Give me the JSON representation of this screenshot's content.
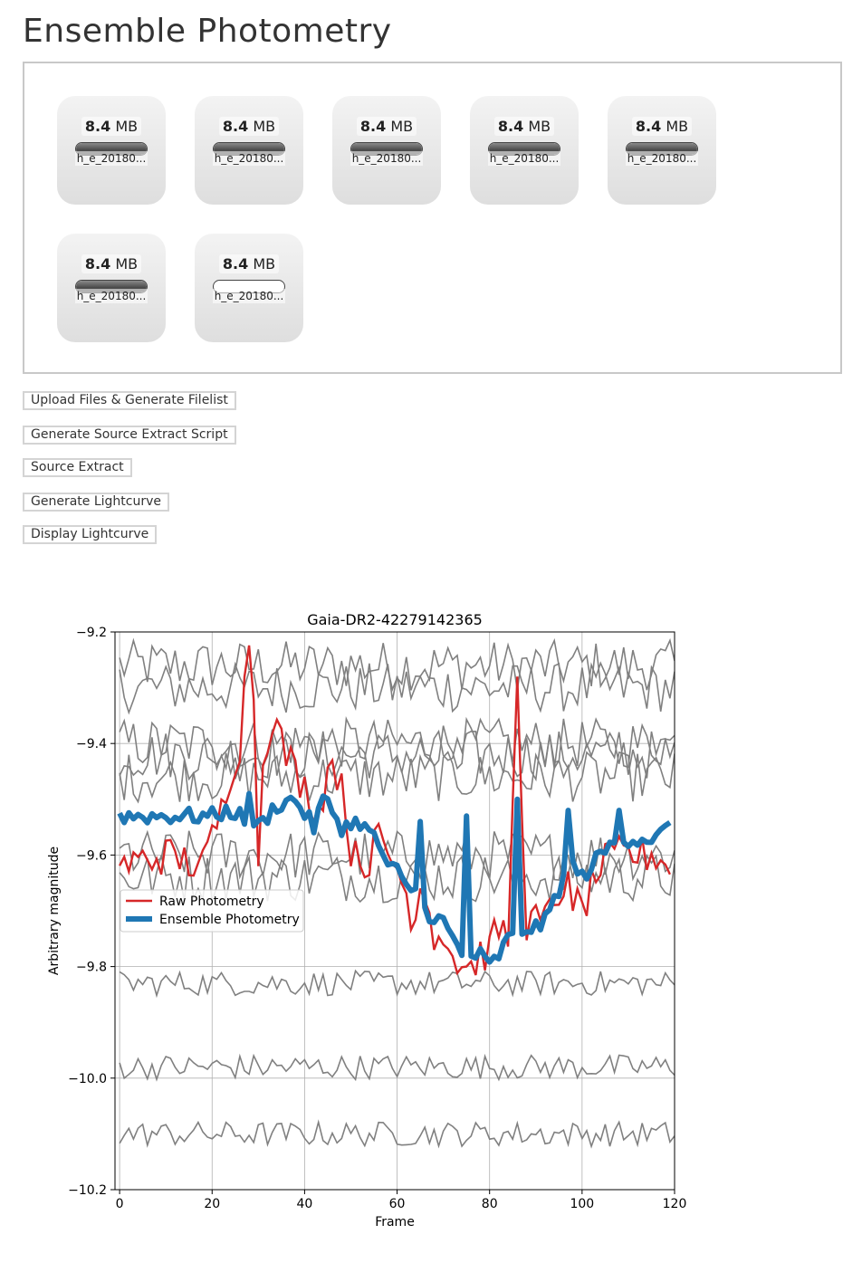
{
  "page": {
    "title": "Ensemble Photometry"
  },
  "files": [
    {
      "size_value": "8.4",
      "size_unit": "MB",
      "name": "h_e_20180...",
      "progress": 1.0
    },
    {
      "size_value": "8.4",
      "size_unit": "MB",
      "name": "h_e_20180...",
      "progress": 1.0
    },
    {
      "size_value": "8.4",
      "size_unit": "MB",
      "name": "h_e_20180...",
      "progress": 1.0
    },
    {
      "size_value": "8.4",
      "size_unit": "MB",
      "name": "h_e_20180...",
      "progress": 1.0
    },
    {
      "size_value": "8.4",
      "size_unit": "MB",
      "name": "h_e_20180...",
      "progress": 1.0
    },
    {
      "size_value": "8.4",
      "size_unit": "MB",
      "name": "h_e_20180...",
      "progress": 1.0
    },
    {
      "size_value": "8.4",
      "size_unit": "MB",
      "name": "h_e_20180...",
      "progress": 0.0
    }
  ],
  "buttons": {
    "upload": "Upload Files & Generate Filelist",
    "gen_script": "Generate Source Extract Script",
    "source_extract": "Source Extract",
    "gen_lightcurve": "Generate Lightcurve",
    "display_lightcurve": "Display Lightcurve"
  },
  "chart_data": {
    "type": "line",
    "title": "Gaia-DR2-42279142365",
    "xlabel": "Frame",
    "ylabel": "Arbitrary magnitude",
    "xlim": [
      -1,
      120
    ],
    "ylim": [
      -10.2,
      -9.2
    ],
    "yaxis_inverted": true,
    "xticks": [
      0,
      20,
      40,
      60,
      80,
      100,
      120
    ],
    "yticks": [
      -9.2,
      -9.4,
      -9.6,
      -9.8,
      -10.0,
      -10.2
    ],
    "ytick_labels": [
      "−9.2",
      "−9.4",
      "−9.6",
      "−9.8",
      "−10.0",
      "−10.2"
    ],
    "grid": true,
    "legend": {
      "placement": "center-left",
      "entries": [
        {
          "label": "Raw Photometry",
          "color": "#d62728"
        },
        {
          "label": "Ensemble Photometry",
          "color": "#1f77b4"
        }
      ]
    },
    "comparison_color": "#808080",
    "comparison_levels": [
      -9.26,
      -9.3,
      -9.4,
      -9.42,
      -9.46,
      -9.6,
      -9.64,
      -9.83,
      -9.98,
      -10.1
    ],
    "raw_profile": [
      [
        0,
        -9.62
      ],
      [
        10,
        -9.6
      ],
      [
        18,
        -9.62
      ],
      [
        22,
        -9.52
      ],
      [
        24,
        -9.45
      ],
      [
        26,
        -9.4
      ],
      [
        28,
        -9.2
      ],
      [
        30,
        -9.45
      ],
      [
        33,
        -9.35
      ],
      [
        36,
        -9.42
      ],
      [
        40,
        -9.48
      ],
      [
        43,
        -9.52
      ],
      [
        46,
        -9.42
      ],
      [
        50,
        -9.55
      ],
      [
        53,
        -9.62
      ],
      [
        56,
        -9.57
      ],
      [
        58,
        -9.6
      ],
      [
        60,
        -9.62
      ],
      [
        63,
        -9.7
      ],
      [
        66,
        -9.68
      ],
      [
        69,
        -9.72
      ],
      [
        72,
        -9.78
      ],
      [
        74,
        -9.8
      ],
      [
        76,
        -9.8
      ],
      [
        78,
        -9.78
      ],
      [
        80,
        -9.77
      ],
      [
        82,
        -9.73
      ],
      [
        84,
        -9.75
      ],
      [
        86,
        -9.3
      ],
      [
        88,
        -9.72
      ],
      [
        92,
        -9.72
      ],
      [
        96,
        -9.65
      ],
      [
        98,
        -9.67
      ],
      [
        100,
        -9.7
      ],
      [
        104,
        -9.62
      ],
      [
        108,
        -9.6
      ],
      [
        112,
        -9.6
      ],
      [
        116,
        -9.6
      ],
      [
        119,
        -9.62
      ]
    ],
    "ensemble_profile": [
      [
        0,
        -9.53
      ],
      [
        10,
        -9.53
      ],
      [
        20,
        -9.53
      ],
      [
        24,
        -9.52
      ],
      [
        26,
        -9.53
      ],
      [
        30,
        -9.55
      ],
      [
        34,
        -9.51
      ],
      [
        38,
        -9.5
      ],
      [
        42,
        -9.55
      ],
      [
        44,
        -9.5
      ],
      [
        46,
        -9.52
      ],
      [
        48,
        -9.55
      ],
      [
        52,
        -9.54
      ],
      [
        56,
        -9.58
      ],
      [
        58,
        -9.62
      ],
      [
        60,
        -9.63
      ],
      [
        62,
        -9.66
      ],
      [
        64,
        -9.66
      ],
      [
        66,
        -9.7
      ],
      [
        68,
        -9.71
      ],
      [
        70,
        -9.72
      ],
      [
        72,
        -9.75
      ],
      [
        74,
        -9.78
      ],
      [
        76,
        -9.78
      ],
      [
        78,
        -9.78
      ],
      [
        80,
        -9.8
      ],
      [
        82,
        -9.78
      ],
      [
        84,
        -9.75
      ],
      [
        86,
        -9.75
      ],
      [
        88,
        -9.73
      ],
      [
        90,
        -9.73
      ],
      [
        92,
        -9.72
      ],
      [
        94,
        -9.68
      ],
      [
        96,
        -9.64
      ],
      [
        98,
        -9.62
      ],
      [
        100,
        -9.64
      ],
      [
        104,
        -9.6
      ],
      [
        108,
        -9.57
      ],
      [
        112,
        -9.57
      ],
      [
        116,
        -9.57
      ],
      [
        119,
        -9.55
      ]
    ],
    "raw_spikes": [
      [
        30,
        -9.62
      ],
      [
        50,
        -9.62
      ],
      [
        53,
        -9.64
      ],
      [
        65,
        -9.66
      ],
      [
        68,
        -9.77
      ],
      [
        75,
        -9.8
      ],
      [
        86,
        -9.28
      ],
      [
        98,
        -9.7
      ]
    ],
    "ensemble_spikes": [
      [
        28,
        -9.49
      ],
      [
        65,
        -9.54
      ],
      [
        75,
        -9.53
      ],
      [
        86,
        -9.5
      ],
      [
        97,
        -9.52
      ],
      [
        108,
        -9.52
      ]
    ]
  }
}
